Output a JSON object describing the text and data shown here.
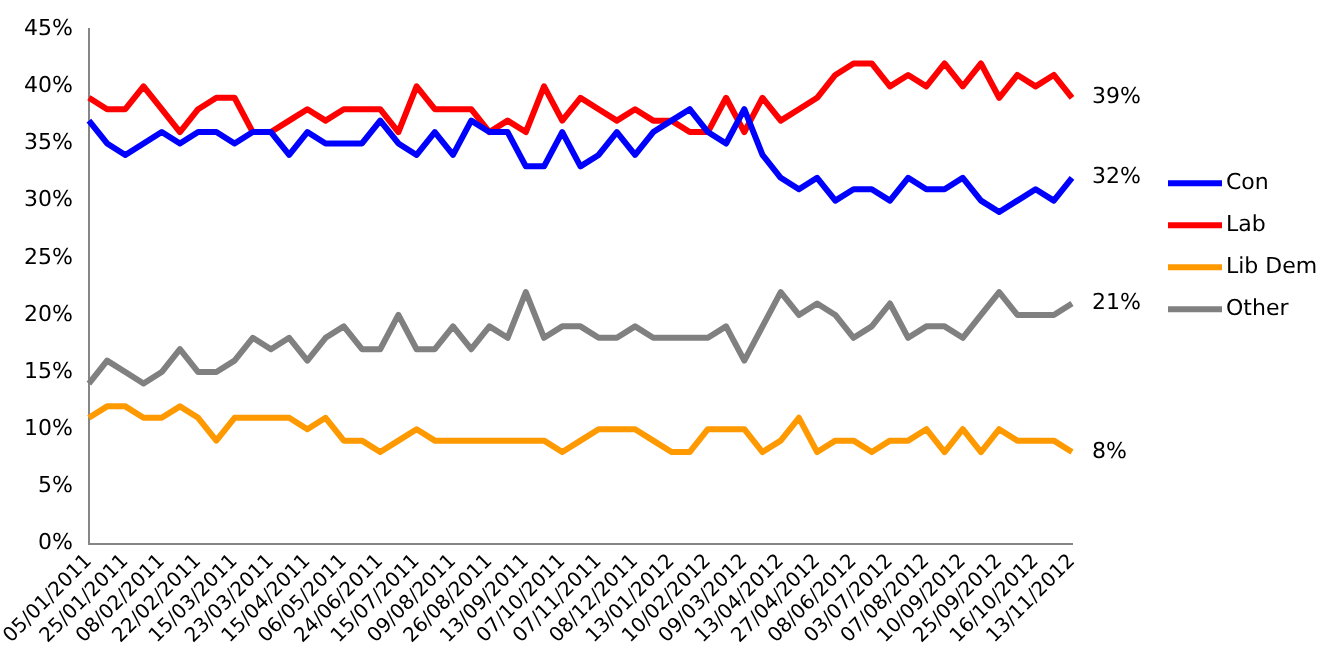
{
  "chart_data": {
    "type": "line",
    "categories": [
      "05/01/2011",
      null,
      "25/01/2011",
      null,
      "08/02/2011",
      null,
      "22/02/2011",
      null,
      "15/03/2011",
      null,
      "23/03/2011",
      null,
      "15/04/2011",
      null,
      "06/05/2011",
      null,
      "24/06/2011",
      null,
      "15/07/2011",
      null,
      "09/08/2011",
      null,
      "26/08/2011",
      null,
      "13/09/2011",
      null,
      "07/10/2011",
      null,
      "07/11/2011",
      null,
      "08/12/2011",
      null,
      "13/01/2012",
      null,
      "10/02/2012",
      null,
      "09/03/2012",
      null,
      "13/04/2012",
      null,
      "27/04/2012",
      null,
      "08/06/2012",
      null,
      "03/07/2012",
      null,
      "07/08/2012",
      null,
      "10/09/2012",
      null,
      "25/09/2012",
      null,
      "16/10/2012",
      null,
      "13/11/2012"
    ],
    "series": [
      {
        "name": "Con",
        "color": "#0000ff",
        "values": [
          37,
          35,
          34,
          35,
          36,
          35,
          36,
          36,
          35,
          36,
          36,
          34,
          36,
          35,
          35,
          35,
          37,
          35,
          34,
          36,
          34,
          37,
          36,
          36,
          33,
          33,
          36,
          33,
          34,
          36,
          34,
          36,
          37,
          38,
          36,
          35,
          38,
          34,
          32,
          31,
          32,
          30,
          31,
          31,
          30,
          32,
          31,
          31,
          32,
          30,
          29,
          30,
          31,
          30,
          32
        ],
        "value_labels": [
          null,
          null,
          null,
          null,
          null,
          null,
          null,
          null,
          null,
          null,
          null,
          null,
          null,
          null,
          null,
          null,
          null,
          null,
          null,
          null,
          null,
          null,
          null,
          null,
          null,
          null,
          null,
          null,
          null,
          null,
          null,
          null,
          null,
          null,
          null,
          null,
          null,
          null,
          null,
          null,
          null,
          null,
          null,
          null,
          null,
          null,
          null,
          null,
          null,
          null,
          null,
          null,
          null,
          null,
          "32%"
        ]
      },
      {
        "name": "Lab",
        "color": "#ff0000",
        "values": [
          39,
          38,
          38,
          40,
          38,
          36,
          38,
          39,
          39,
          36,
          36,
          37,
          38,
          37,
          38,
          38,
          38,
          36,
          40,
          38,
          38,
          38,
          36,
          37,
          36,
          40,
          37,
          39,
          38,
          37,
          38,
          37,
          37,
          36,
          36,
          39,
          36,
          39,
          37,
          38,
          39,
          41,
          42,
          42,
          40,
          41,
          40,
          42,
          40,
          42,
          39,
          41,
          40,
          41,
          39
        ],
        "value_labels": [
          null,
          null,
          null,
          null,
          null,
          null,
          null,
          null,
          null,
          null,
          null,
          null,
          null,
          null,
          null,
          null,
          null,
          null,
          null,
          null,
          null,
          null,
          null,
          null,
          null,
          null,
          null,
          null,
          null,
          null,
          null,
          null,
          null,
          null,
          null,
          null,
          null,
          null,
          null,
          null,
          null,
          null,
          null,
          null,
          null,
          null,
          null,
          null,
          null,
          null,
          null,
          null,
          null,
          null,
          "39%"
        ]
      },
      {
        "name": "Lib Dem",
        "color": "#ff9900",
        "values": [
          11,
          12,
          12,
          11,
          11,
          12,
          11,
          9,
          11,
          11,
          11,
          11,
          10,
          11,
          9,
          9,
          8,
          9,
          10,
          9,
          9,
          9,
          9,
          9,
          9,
          9,
          8,
          9,
          10,
          10,
          10,
          9,
          8,
          8,
          10,
          10,
          10,
          8,
          9,
          11,
          8,
          9,
          9,
          8,
          9,
          9,
          10,
          8,
          10,
          8,
          10,
          9,
          9,
          9,
          8
        ],
        "value_labels": [
          null,
          null,
          null,
          null,
          null,
          null,
          null,
          null,
          null,
          null,
          null,
          null,
          null,
          null,
          null,
          null,
          null,
          null,
          null,
          null,
          null,
          null,
          null,
          null,
          null,
          null,
          null,
          null,
          null,
          null,
          null,
          null,
          null,
          null,
          null,
          null,
          null,
          null,
          null,
          null,
          null,
          null,
          null,
          null,
          null,
          null,
          null,
          null,
          null,
          null,
          null,
          null,
          null,
          null,
          "8%"
        ]
      },
      {
        "name": "Other",
        "color": "#808080",
        "values": [
          14,
          16,
          15,
          14,
          15,
          17,
          15,
          15,
          16,
          18,
          17,
          18,
          16,
          18,
          19,
          17,
          17,
          20,
          17,
          17,
          19,
          17,
          19,
          18,
          22,
          18,
          19,
          19,
          18,
          18,
          19,
          18,
          18,
          18,
          18,
          19,
          16,
          19,
          22,
          20,
          21,
          20,
          18,
          19,
          21,
          18,
          19,
          19,
          18,
          20,
          22,
          20,
          20,
          20,
          21
        ],
        "value_labels": [
          null,
          null,
          null,
          null,
          null,
          null,
          null,
          null,
          null,
          null,
          null,
          null,
          null,
          null,
          null,
          null,
          null,
          null,
          null,
          null,
          null,
          null,
          null,
          null,
          null,
          null,
          null,
          null,
          null,
          null,
          null,
          null,
          null,
          null,
          null,
          null,
          null,
          null,
          null,
          null,
          null,
          null,
          null,
          null,
          null,
          null,
          null,
          null,
          null,
          null,
          null,
          null,
          null,
          null,
          "21%"
        ]
      }
    ],
    "ylim": [
      0,
      45
    ],
    "yticks": [
      {
        "value": 0,
        "label": "0%"
      },
      {
        "value": 5,
        "label": "5%"
      },
      {
        "value": 10,
        "label": "10%"
      },
      {
        "value": 15,
        "label": "15%"
      },
      {
        "value": 20,
        "label": "20%"
      },
      {
        "value": 25,
        "label": "25%"
      },
      {
        "value": 30,
        "label": "30%"
      },
      {
        "value": 35,
        "label": "35%"
      },
      {
        "value": 40,
        "label": "40%"
      },
      {
        "value": 45,
        "label": "45%"
      }
    ],
    "grid": false,
    "legend": "right",
    "marker": "none",
    "line_style": "solid"
  }
}
